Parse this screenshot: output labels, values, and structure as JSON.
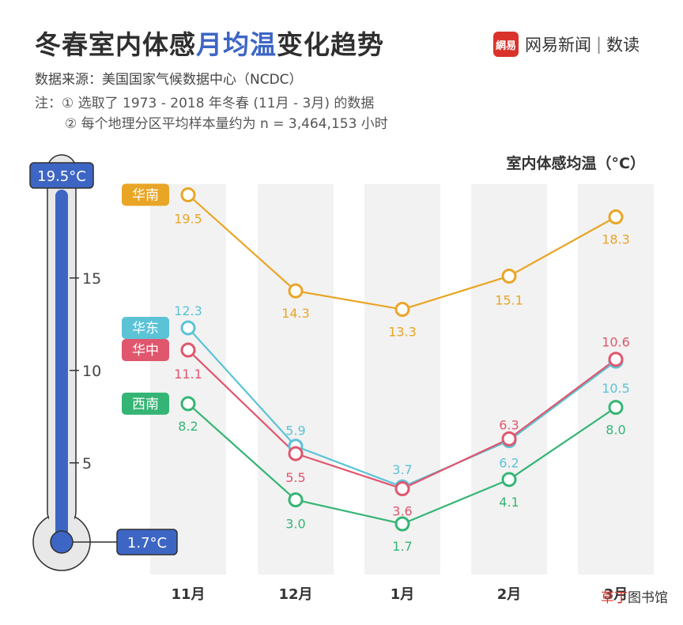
{
  "header": {
    "title_prefix": "冬春室内体感",
    "title_highlight": "月均温",
    "title_suffix": "变化趋势",
    "source": "数据来源：美国国家气候数据中心（NCDC）",
    "note1": "注：① 选取了 1973 - 2018 年冬春 (11月 - 3月) 的数据",
    "note2": "② 每个地理分区平均样本量约为 n = 3,464,153 小时"
  },
  "logo": {
    "badge": "網易",
    "name": "网易新闻",
    "sep": "|",
    "product": "数读"
  },
  "watermark": {
    "part1": "草丁",
    "part2": "图书馆"
  },
  "chart_data": {
    "type": "line",
    "ylabel": "室内体感均温（°C）",
    "categories": [
      "11月",
      "12月",
      "1月",
      "2月",
      "3月"
    ],
    "series": [
      {
        "name": "华南",
        "color": "#e9a526",
        "values": [
          19.5,
          14.3,
          13.3,
          15.1,
          18.3
        ]
      },
      {
        "name": "华东",
        "color": "#5bc3d6",
        "values": [
          12.3,
          5.9,
          3.7,
          6.2,
          10.5
        ]
      },
      {
        "name": "华中",
        "color": "#e0566d",
        "values": [
          11.1,
          5.5,
          3.6,
          6.3,
          10.6
        ]
      },
      {
        "name": "西南",
        "color": "#35b575",
        "values": [
          8.2,
          3.0,
          1.7,
          4.1,
          8.0
        ]
      }
    ],
    "thermometer": {
      "ticks": [
        15,
        10,
        5
      ],
      "max_label": "19.5°C",
      "min_label": "1.7°C",
      "max": 19.5,
      "min": 1.7,
      "color": "#3d66c4"
    }
  }
}
